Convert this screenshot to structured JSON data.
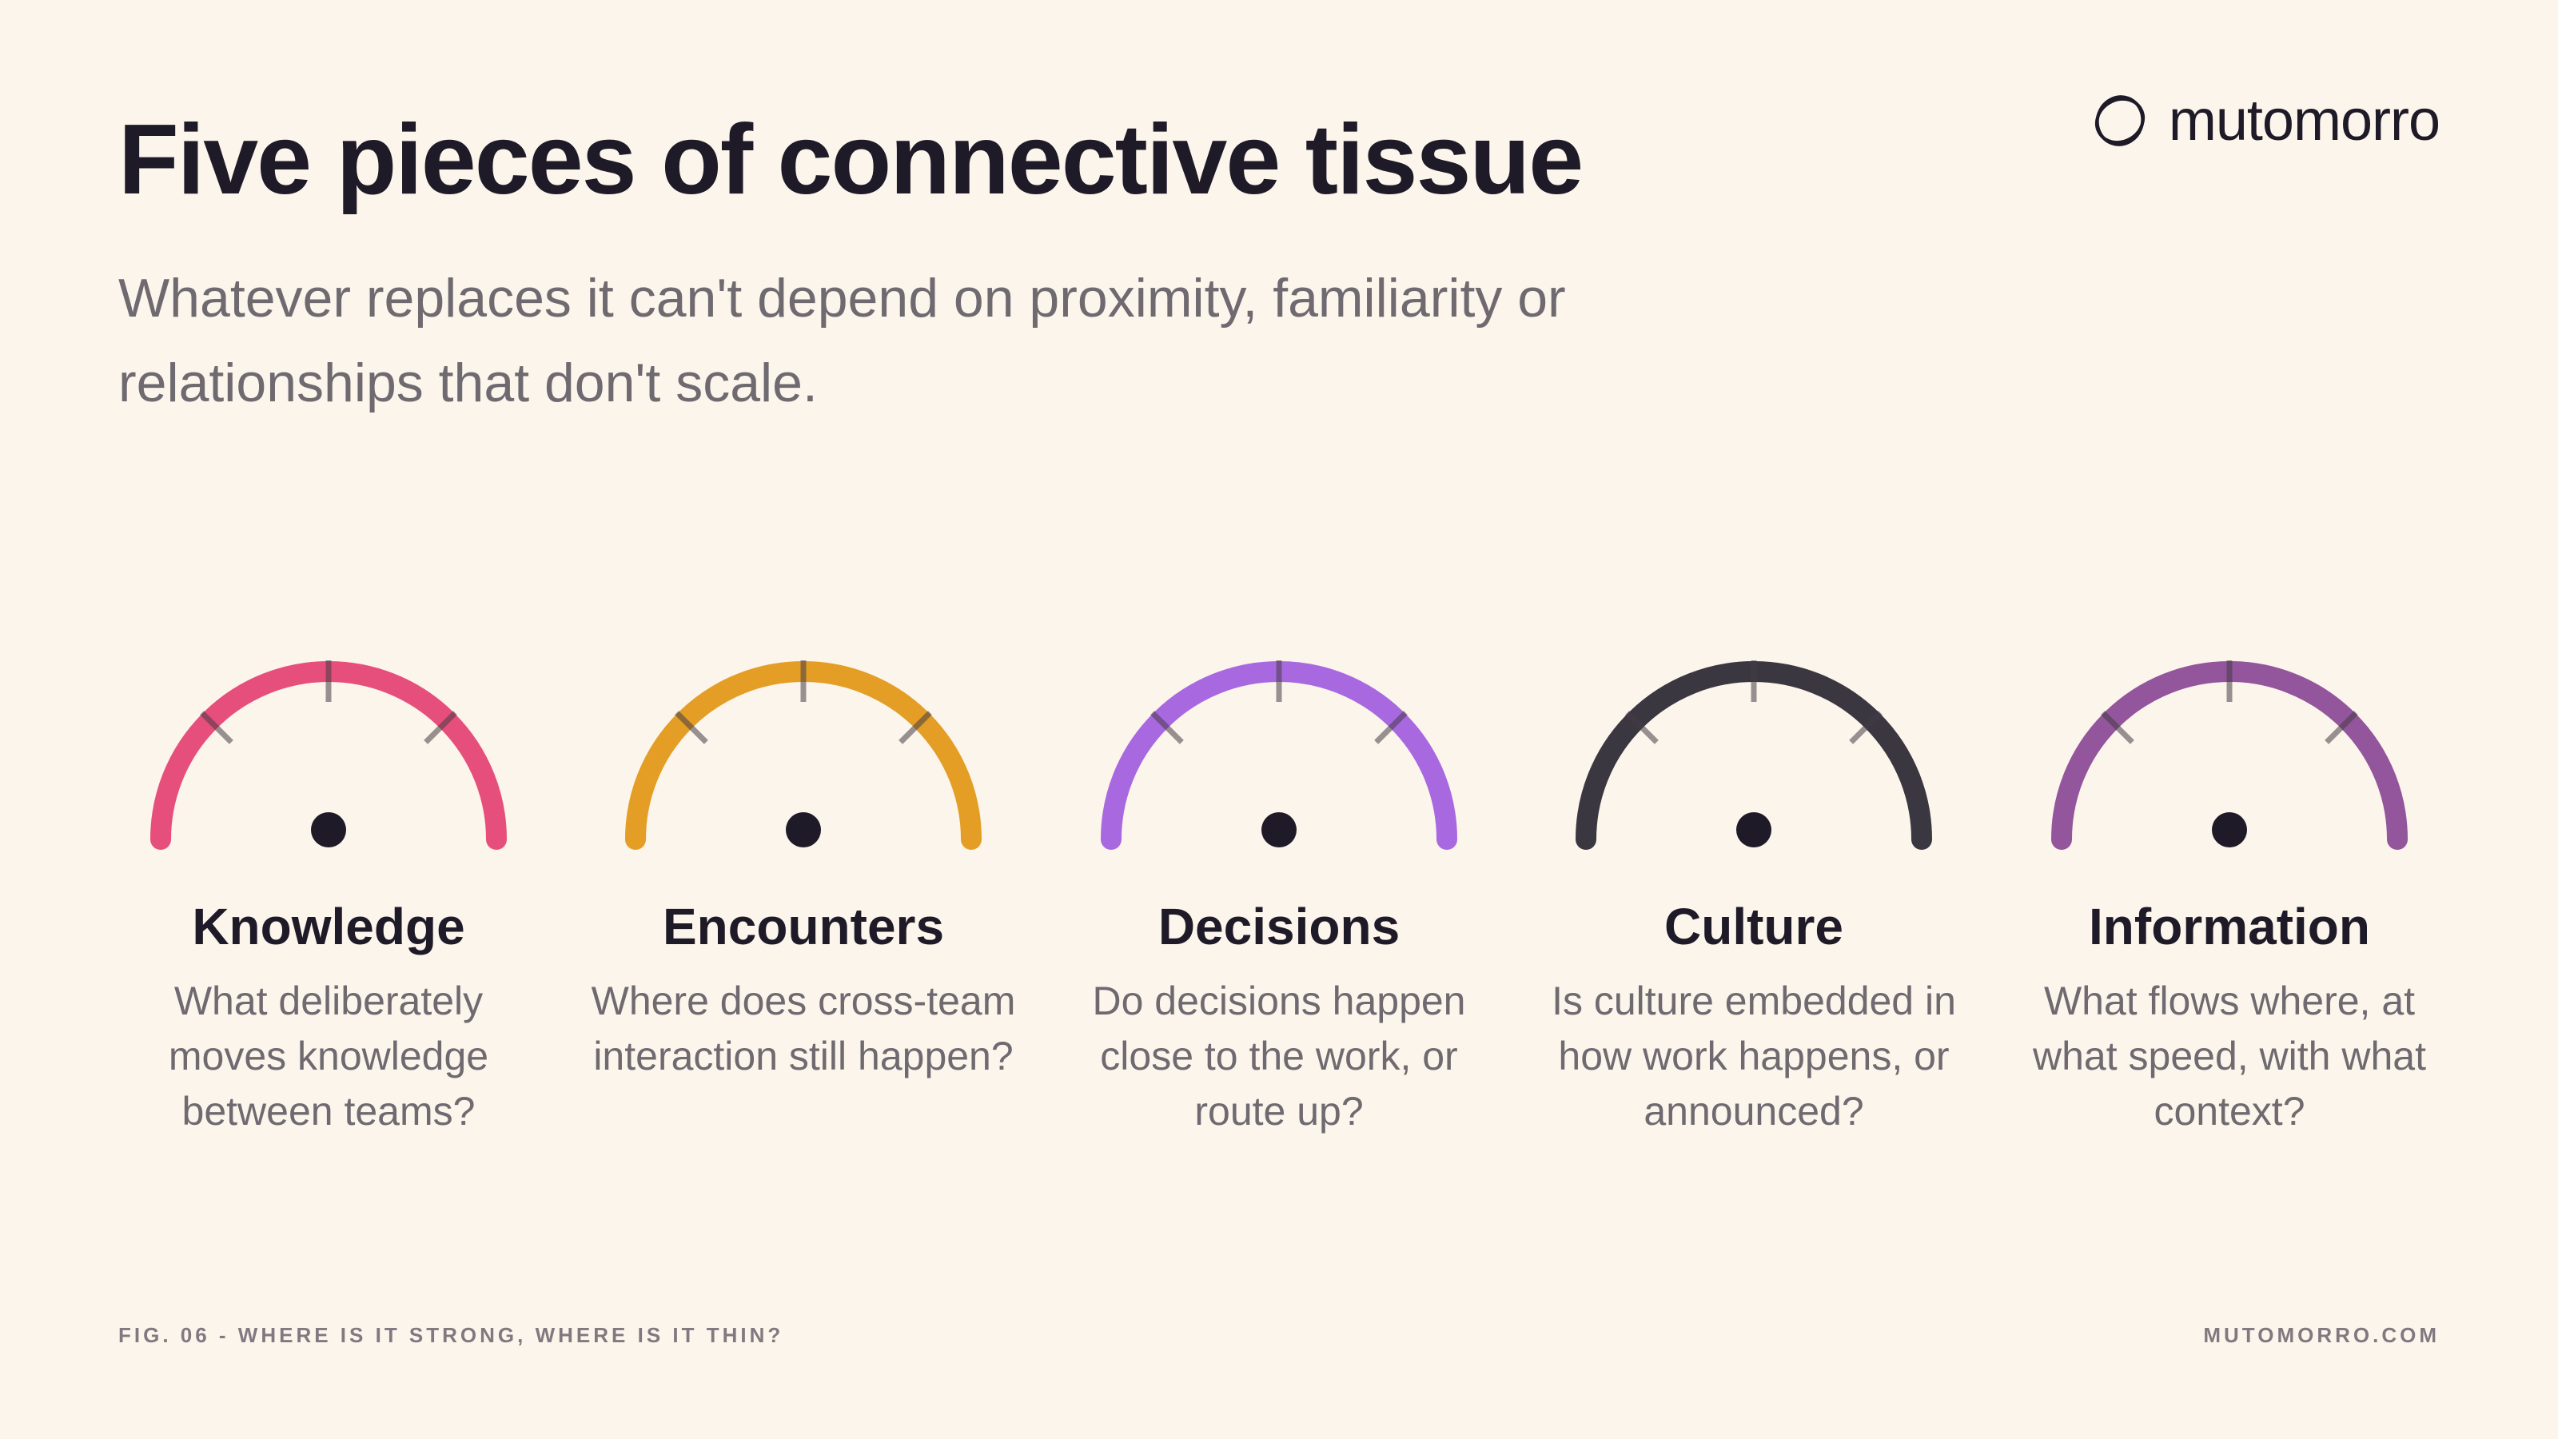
{
  "header": {
    "title": "Five pieces of connective tissue",
    "subtitle": "Whatever replaces it can't depend on proximity, familiarity or relationships that don't scale."
  },
  "brand": {
    "logo_icon": "interlocking-circles-icon",
    "name": "mutomorro"
  },
  "gauges": [
    {
      "label": "Knowledge",
      "question": "What deliberately moves knowledge between teams?",
      "color": "#e64e7b"
    },
    {
      "label": "Encounters",
      "question": "Where does cross-team interaction still happen?",
      "color": "#e49e26"
    },
    {
      "label": "Decisions",
      "question": "Do decisions happen close to the work, or route up?",
      "color": "#a869e0"
    },
    {
      "label": "Culture",
      "question": "Is culture embedded in how work happens, or announced?",
      "color": "#3b3740"
    },
    {
      "label": "Information",
      "question": "What flows where, at what speed, with what context?",
      "color": "#93559c"
    }
  ],
  "footer": {
    "figure_caption": "FIG. 06 - WHERE IS IT STRONG, WHERE IS IT THIN?",
    "website": "MUTOMORRO.COM"
  }
}
